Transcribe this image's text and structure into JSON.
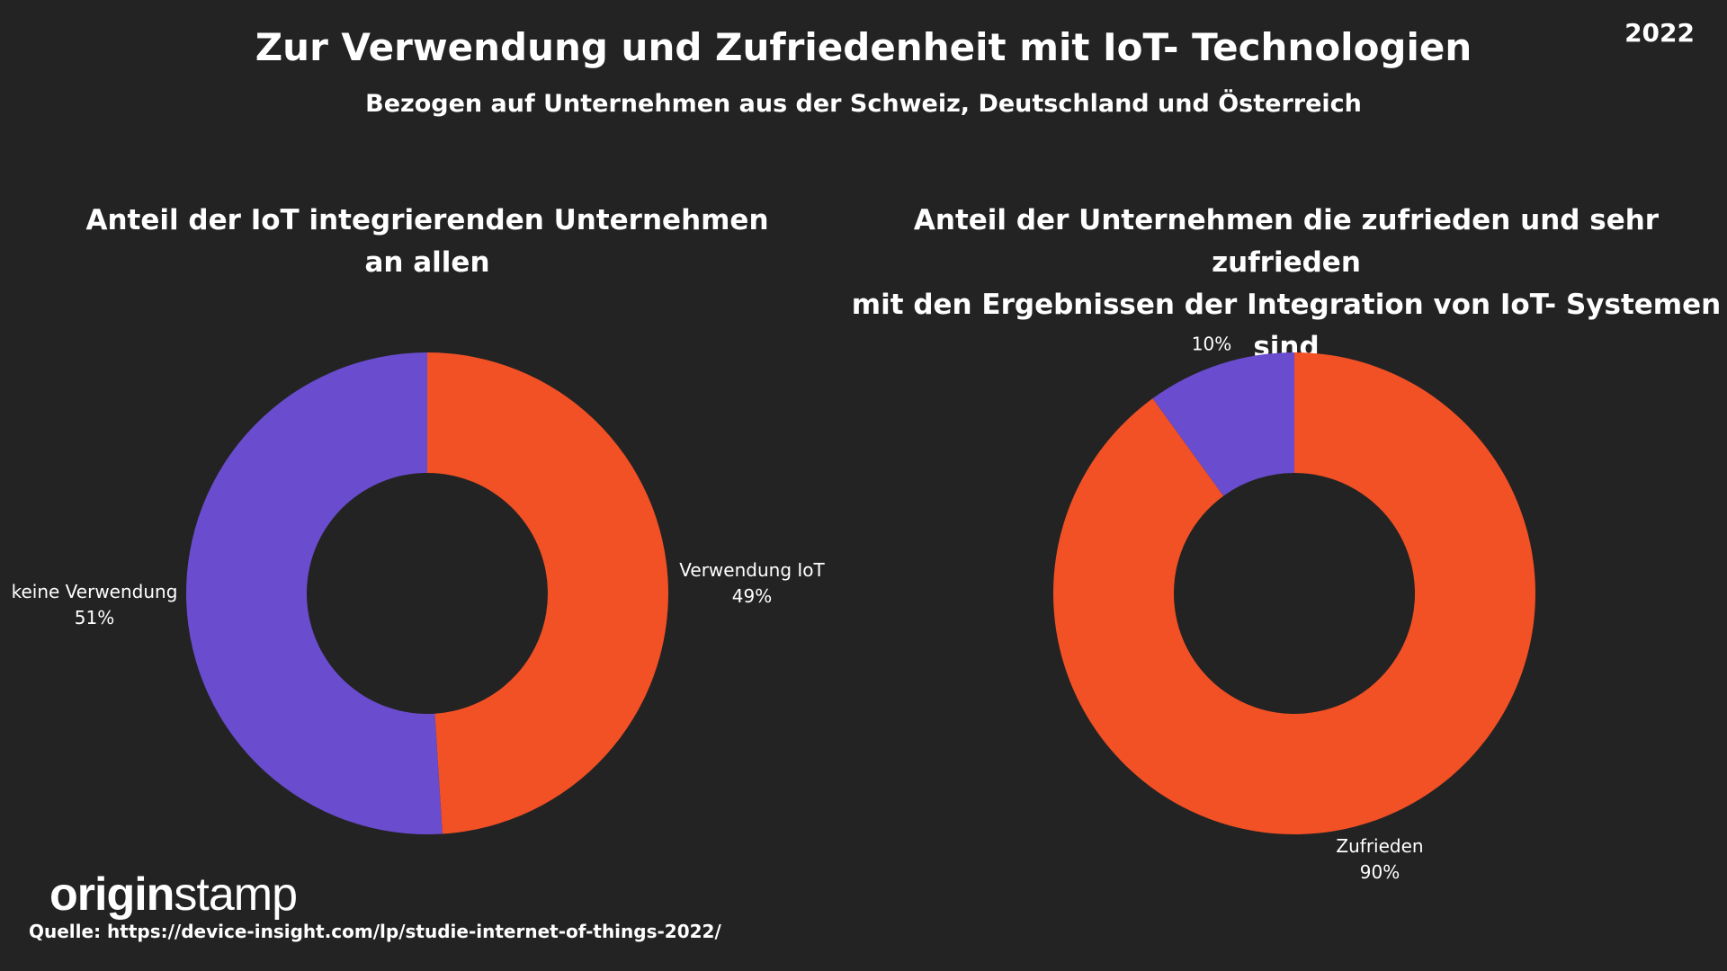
{
  "header": {
    "title": "Zur Verwendung und Zufriedenheit mit IoT- Technologien",
    "subtitle": "Bezogen auf Unternehmen aus der Schweiz, Deutschland und Österreich",
    "year": "2022"
  },
  "chart_data": [
    {
      "type": "pie",
      "donut": true,
      "title_line1": "Anteil der IoT integrierenden Unternehmen",
      "title_line2": "an allen",
      "slices": [
        {
          "label": "Verwendung IoT",
          "value": 49,
          "display": "49%",
          "color": "#f25025"
        },
        {
          "label": "keine Verwendung",
          "value": 51,
          "display": "51%",
          "color": "#6a4ccf"
        }
      ]
    },
    {
      "type": "pie",
      "donut": true,
      "title_line1": "Anteil der Unternehmen die zufrieden und sehr zufrieden",
      "title_line2": "mit den Ergebnissen der Integration von IoT- Systemen",
      "title_line3": "sind",
      "slices": [
        {
          "label": "Zufrieden",
          "value": 90,
          "display": "90%",
          "color": "#f25025"
        },
        {
          "label": "",
          "value": 10,
          "display": "10%",
          "color": "#6a4ccf"
        }
      ]
    }
  ],
  "footer": {
    "logo_bold": "origin",
    "logo_light": "stamp",
    "source": "Quelle: https://device-insight.com/lp/studie-internet-of-things-2022/"
  }
}
